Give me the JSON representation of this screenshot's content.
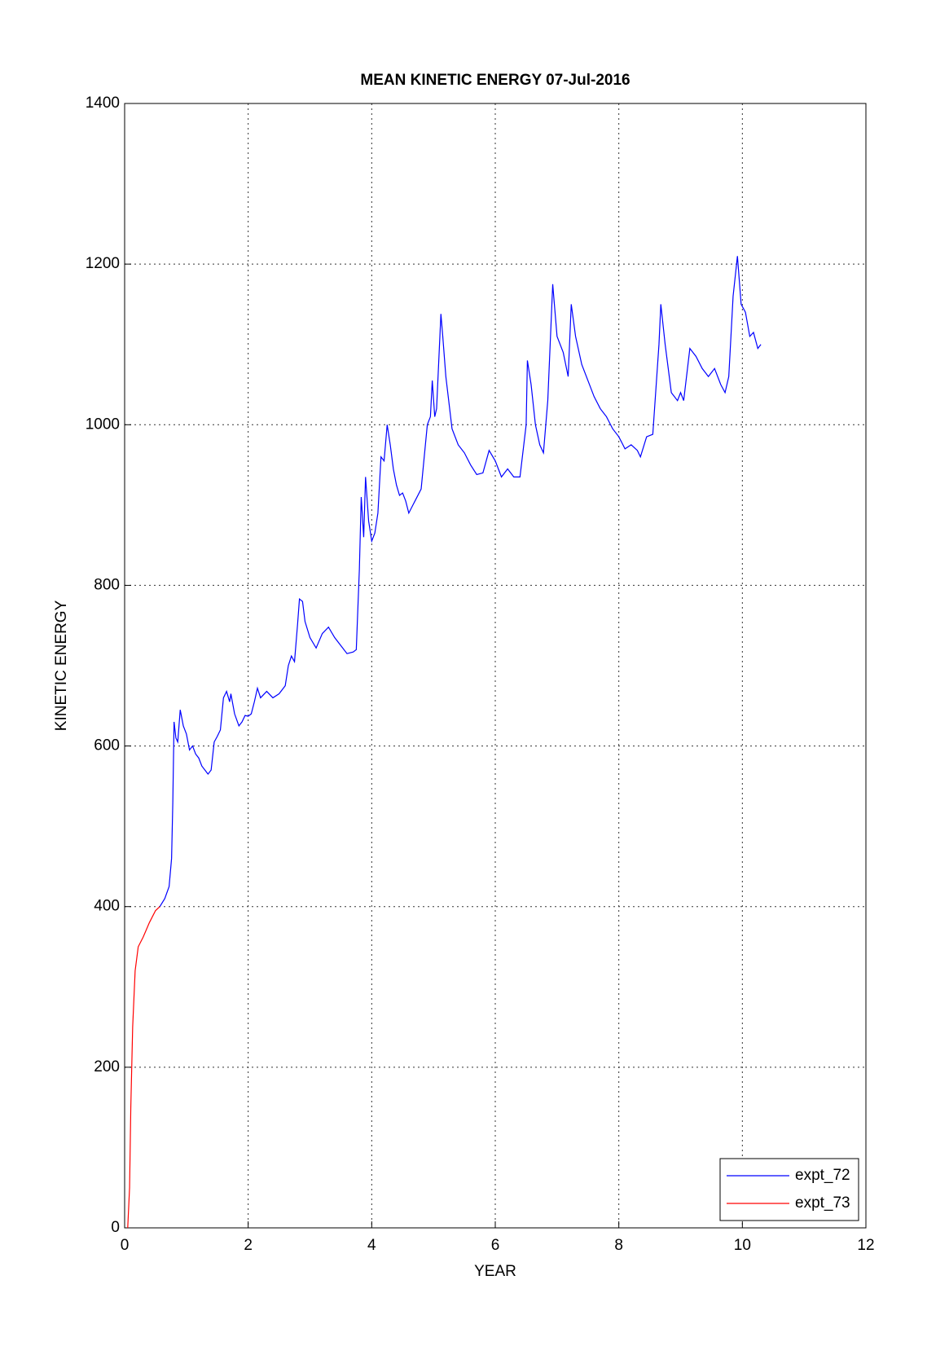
{
  "chart_data": {
    "type": "line",
    "title": "MEAN KINETIC ENERGY 07-Jul-2016",
    "x_label": "YEAR",
    "y_label": "KINETIC ENERGY",
    "xlim": [
      0,
      12
    ],
    "xticks": [
      0,
      2,
      4,
      6,
      8,
      10,
      12
    ],
    "ylim": [
      0,
      1400
    ],
    "yticks": [
      0,
      200,
      400,
      600,
      800,
      1000,
      1200,
      1400
    ],
    "grid": true,
    "legend": "lower right",
    "series": [
      {
        "name": "expt_72",
        "color": "#0000ff",
        "x": [
          0.57,
          0.65,
          0.72,
          0.76,
          0.78,
          0.8,
          0.83,
          0.86,
          0.9,
          0.95,
          1.0,
          1.05,
          1.1,
          1.15,
          1.2,
          1.25,
          1.3,
          1.35,
          1.4,
          1.45,
          1.5,
          1.55,
          1.6,
          1.65,
          1.7,
          1.72,
          1.78,
          1.85,
          1.9,
          1.95,
          2.0,
          2.05,
          2.1,
          2.15,
          2.2,
          2.3,
          2.4,
          2.5,
          2.6,
          2.65,
          2.7,
          2.75,
          2.8,
          2.83,
          2.88,
          2.92,
          3.0,
          3.1,
          3.2,
          3.3,
          3.4,
          3.5,
          3.6,
          3.7,
          3.75,
          3.8,
          3.83,
          3.87,
          3.9,
          3.95,
          4.0,
          4.05,
          4.1,
          4.15,
          4.2,
          4.25,
          4.3,
          4.35,
          4.4,
          4.45,
          4.5,
          4.55,
          4.6,
          4.7,
          4.8,
          4.9,
          4.95,
          4.98,
          5.02,
          5.05,
          5.12,
          5.15,
          5.2,
          5.3,
          5.4,
          5.5,
          5.6,
          5.7,
          5.8,
          5.9,
          6.0,
          6.1,
          6.2,
          6.3,
          6.4,
          6.5,
          6.52,
          6.58,
          6.65,
          6.72,
          6.78,
          6.85,
          6.93,
          7.0,
          7.1,
          7.18,
          7.23,
          7.3,
          7.4,
          7.5,
          7.6,
          7.7,
          7.8,
          7.9,
          8.0,
          8.1,
          8.2,
          8.3,
          8.35,
          8.45,
          8.55,
          8.65,
          8.68,
          8.75,
          8.85,
          8.95,
          9.0,
          9.05,
          9.15,
          9.25,
          9.35,
          9.45,
          9.55,
          9.65,
          9.72,
          9.78,
          9.85,
          9.92,
          9.98,
          10.05,
          10.12,
          10.18,
          10.25,
          10.3
        ],
        "values": [
          400,
          410,
          425,
          460,
          530,
          630,
          610,
          605,
          645,
          625,
          615,
          595,
          600,
          590,
          585,
          575,
          570,
          565,
          570,
          605,
          612,
          620,
          660,
          668,
          655,
          665,
          640,
          625,
          630,
          638,
          637,
          640,
          655,
          672,
          660,
          668,
          660,
          665,
          675,
          700,
          712,
          705,
          752,
          783,
          780,
          755,
          735,
          722,
          740,
          748,
          735,
          725,
          715,
          717,
          720,
          820,
          910,
          860,
          935,
          880,
          855,
          865,
          890,
          960,
          955,
          1000,
          975,
          945,
          925,
          912,
          915,
          905,
          890,
          905,
          920,
          1000,
          1010,
          1055,
          1010,
          1020,
          1138,
          1110,
          1060,
          995,
          975,
          965,
          950,
          938,
          940,
          968,
          955,
          935,
          945,
          935,
          935,
          1000,
          1080,
          1050,
          1000,
          975,
          965,
          1030,
          1175,
          1110,
          1090,
          1060,
          1150,
          1110,
          1075,
          1055,
          1035,
          1020,
          1010,
          995,
          985,
          970,
          975,
          968,
          960,
          985,
          988,
          1100,
          1150,
          1100,
          1040,
          1030,
          1040,
          1030,
          1095,
          1085,
          1070,
          1060,
          1070,
          1050,
          1040,
          1060,
          1160,
          1210,
          1150,
          1140,
          1110,
          1115,
          1095,
          1100
        ]
      },
      {
        "name": "expt_73",
        "color": "#ff0000",
        "x": [
          0.05,
          0.08,
          0.1,
          0.13,
          0.17,
          0.22,
          0.3,
          0.4,
          0.5,
          0.57
        ],
        "values": [
          0,
          50,
          150,
          250,
          320,
          350,
          362,
          380,
          395,
          400
        ]
      }
    ]
  }
}
